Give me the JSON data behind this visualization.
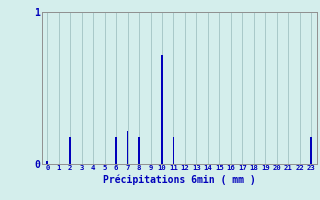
{
  "hours": [
    0,
    1,
    2,
    3,
    4,
    5,
    6,
    7,
    8,
    9,
    10,
    11,
    12,
    13,
    14,
    15,
    16,
    17,
    18,
    19,
    20,
    21,
    22,
    23
  ],
  "values": [
    0.02,
    0,
    0.18,
    0,
    0,
    0,
    0.18,
    0.22,
    0.18,
    0,
    0.72,
    0.18,
    0,
    0,
    0,
    0,
    0,
    0,
    0,
    0,
    0,
    0,
    0,
    0.18
  ],
  "ylim": [
    0,
    1.0
  ],
  "xlim": [
    -0.5,
    23.5
  ],
  "yticks": [
    0,
    1
  ],
  "ytick_labels": [
    "0",
    "1"
  ],
  "xlabel": "Précipitations 6min ( mm )",
  "bar_color": "#0000bb",
  "bg_color": "#d4eeec",
  "grid_color": "#a8c8c8",
  "axis_color": "#909090",
  "text_color": "#0000bb",
  "bar_width": 0.15
}
